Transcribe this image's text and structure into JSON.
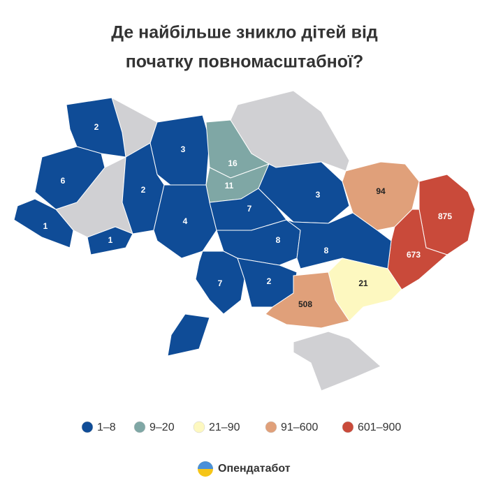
{
  "title": [
    "Де найбільше зникло дітей від",
    "початку повномасштабної?"
  ],
  "regions": [
    {
      "value": 2,
      "color": "#0f4c97"
    },
    {
      "value": 6,
      "color": "#0f4c97"
    },
    {
      "value": 1,
      "color": "#0f4c97"
    },
    {
      "value": 1,
      "color": "#0f4c97"
    },
    {
      "value": 3,
      "color": "#0f4c97"
    },
    {
      "value": 2,
      "color": "#0f4c97"
    },
    {
      "value": 16,
      "color": "#7fa7a5"
    },
    {
      "value": 11,
      "color": "#7fa7a5"
    },
    {
      "value": 4,
      "color": "#0f4c97"
    },
    {
      "value": 7,
      "color": "#0f4c97"
    },
    {
      "value": 3,
      "color": "#0f4c97"
    },
    {
      "value": 94,
      "color": "#e0a07a"
    },
    {
      "value": 875,
      "color": "#c94a3a"
    },
    {
      "value": 8,
      "color": "#0f4c97"
    },
    {
      "value": 673,
      "color": "#c94a3a"
    },
    {
      "value": 8,
      "color": "#0f4c97"
    },
    {
      "value": 7,
      "color": "#0f4c97"
    },
    {
      "value": 2,
      "color": "#0f4c97"
    },
    {
      "value": 21,
      "color": "#fdf8c0"
    },
    {
      "value": 508,
      "color": "#e0a07a"
    }
  ],
  "legend": [
    {
      "label": "1–8",
      "color": "#0f4c97"
    },
    {
      "label": "9–20",
      "color": "#7fa7a5"
    },
    {
      "label": "21–90",
      "color": "#fdf8c0"
    },
    {
      "label": "91–600",
      "color": "#e0a07a"
    },
    {
      "label": "601–900",
      "color": "#c94a3a"
    }
  ],
  "brand": "Опендатабот"
}
